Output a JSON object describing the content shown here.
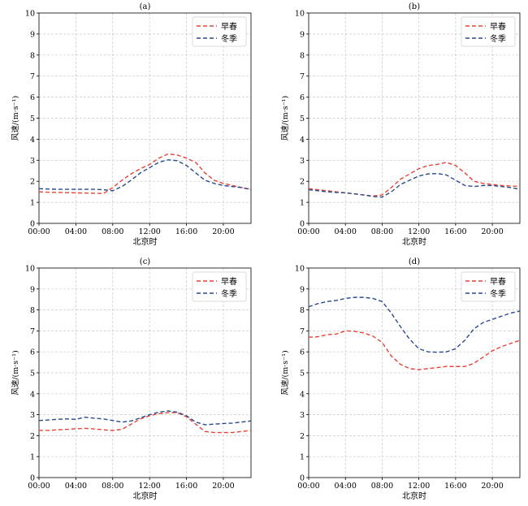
{
  "figure": {
    "x_label": "北京时",
    "y_label": "风速/(m·s⁻¹)",
    "x_ticks": [
      "00:00",
      "04:00",
      "08:00",
      "12:00",
      "16:00",
      "20:00"
    ],
    "y_ticks": [
      "0",
      "1",
      "2",
      "3",
      "4",
      "5",
      "6",
      "7",
      "8",
      "9",
      "10"
    ]
  },
  "chart_data": [
    {
      "type": "line",
      "title": "(a)",
      "xlabel": "北京时",
      "ylabel": "风速/(m·s⁻¹)",
      "xlim": [
        0,
        23
      ],
      "ylim": [
        0,
        10
      ],
      "grid": true,
      "legend": "top-right",
      "x": [
        0,
        1,
        2,
        3,
        4,
        5,
        6,
        7,
        8,
        9,
        10,
        11,
        12,
        13,
        14,
        15,
        16,
        17,
        18,
        19,
        20,
        21,
        22,
        23
      ],
      "series": [
        {
          "name": "早春",
          "color": "#e8443a",
          "values": [
            1.5,
            1.48,
            1.47,
            1.46,
            1.45,
            1.44,
            1.43,
            1.42,
            1.7,
            2.05,
            2.35,
            2.6,
            2.8,
            3.1,
            3.3,
            3.25,
            3.1,
            2.9,
            2.4,
            2.05,
            1.9,
            1.8,
            1.7,
            1.62
          ]
        },
        {
          "name": "冬季",
          "color": "#2b4a8b",
          "values": [
            1.65,
            1.63,
            1.62,
            1.62,
            1.62,
            1.62,
            1.62,
            1.6,
            1.55,
            1.75,
            2.05,
            2.4,
            2.65,
            2.9,
            3.02,
            2.98,
            2.75,
            2.4,
            2.05,
            1.9,
            1.8,
            1.75,
            1.7,
            1.6
          ]
        }
      ]
    },
    {
      "type": "line",
      "title": "(b)",
      "xlabel": "北京时",
      "ylabel": "风速/(m·s⁻¹)",
      "xlim": [
        0,
        23
      ],
      "ylim": [
        0,
        10
      ],
      "grid": true,
      "legend": "top-right",
      "x": [
        0,
        1,
        2,
        3,
        4,
        5,
        6,
        7,
        8,
        9,
        10,
        11,
        12,
        13,
        14,
        15,
        16,
        17,
        18,
        19,
        20,
        21,
        22,
        23
      ],
      "series": [
        {
          "name": "早春",
          "color": "#e8443a",
          "values": [
            1.65,
            1.6,
            1.55,
            1.5,
            1.45,
            1.4,
            1.35,
            1.3,
            1.35,
            1.7,
            2.1,
            2.35,
            2.6,
            2.75,
            2.8,
            2.9,
            2.75,
            2.4,
            2.0,
            1.9,
            1.85,
            1.8,
            1.78,
            1.75
          ]
        },
        {
          "name": "冬季",
          "color": "#2b4a8b",
          "values": [
            1.6,
            1.55,
            1.5,
            1.47,
            1.45,
            1.4,
            1.35,
            1.28,
            1.25,
            1.5,
            1.85,
            2.05,
            2.25,
            2.35,
            2.37,
            2.3,
            2.05,
            1.8,
            1.75,
            1.8,
            1.8,
            1.75,
            1.7,
            1.62
          ]
        }
      ]
    },
    {
      "type": "line",
      "title": "(c)",
      "xlabel": "北京时",
      "ylabel": "风速/(m·s⁻¹)",
      "xlim": [
        0,
        23
      ],
      "ylim": [
        0,
        10
      ],
      "grid": true,
      "legend": "top-right",
      "x": [
        0,
        1,
        2,
        3,
        4,
        5,
        6,
        7,
        8,
        9,
        10,
        11,
        12,
        13,
        14,
        15,
        16,
        17,
        18,
        19,
        20,
        21,
        22,
        23
      ],
      "series": [
        {
          "name": "早春",
          "color": "#e8443a",
          "values": [
            2.25,
            2.25,
            2.28,
            2.3,
            2.33,
            2.35,
            2.32,
            2.28,
            2.25,
            2.3,
            2.55,
            2.8,
            2.95,
            3.05,
            3.1,
            3.1,
            2.9,
            2.55,
            2.2,
            2.15,
            2.15,
            2.15,
            2.2,
            2.25
          ]
        },
        {
          "name": "冬季",
          "color": "#2b4a8b",
          "values": [
            2.72,
            2.75,
            2.78,
            2.8,
            2.78,
            2.88,
            2.83,
            2.8,
            2.72,
            2.65,
            2.7,
            2.85,
            3.0,
            3.12,
            3.18,
            3.12,
            2.95,
            2.65,
            2.52,
            2.55,
            2.58,
            2.6,
            2.65,
            2.7
          ]
        }
      ]
    },
    {
      "type": "line",
      "title": "(d)",
      "xlabel": "北京时",
      "ylabel": "风速/(m·s⁻¹)",
      "xlim": [
        0,
        23
      ],
      "ylim": [
        0,
        10
      ],
      "grid": true,
      "legend": "top-right",
      "x": [
        0,
        1,
        2,
        3,
        4,
        5,
        6,
        7,
        8,
        9,
        10,
        11,
        12,
        13,
        14,
        15,
        16,
        17,
        18,
        19,
        20,
        21,
        22,
        23
      ],
      "series": [
        {
          "name": "早春",
          "color": "#e8443a",
          "values": [
            6.7,
            6.72,
            6.82,
            6.85,
            7.0,
            6.98,
            6.9,
            6.75,
            6.45,
            5.8,
            5.4,
            5.2,
            5.15,
            5.2,
            5.25,
            5.3,
            5.3,
            5.3,
            5.45,
            5.75,
            6.05,
            6.25,
            6.4,
            6.55
          ]
        },
        {
          "name": "冬季",
          "color": "#2b4a8b",
          "values": [
            8.15,
            8.3,
            8.4,
            8.45,
            8.55,
            8.6,
            8.6,
            8.55,
            8.4,
            7.85,
            7.2,
            6.6,
            6.15,
            6.0,
            5.98,
            6.0,
            6.15,
            6.55,
            7.1,
            7.4,
            7.55,
            7.7,
            7.85,
            7.95
          ]
        }
      ]
    }
  ]
}
